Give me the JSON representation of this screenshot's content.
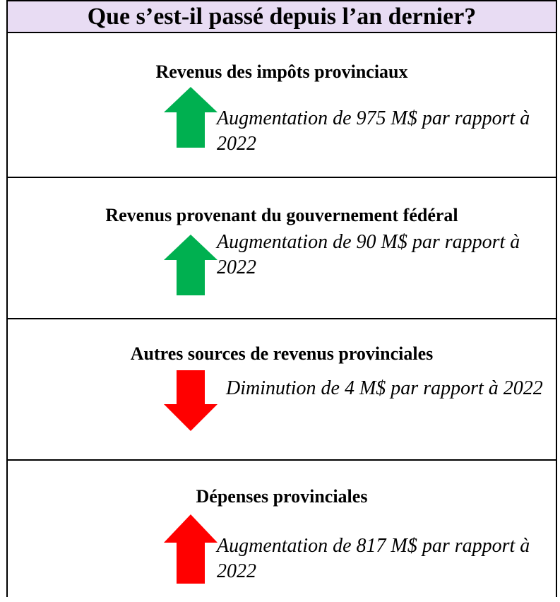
{
  "header": {
    "title": "Que s’est-il passé depuis l’an dernier?"
  },
  "sections": [
    {
      "heading": "Revenus des impôts provinciaux",
      "description": "Augmentation de 975 M$ par rapport à 2022"
    },
    {
      "heading": "Revenus provenant du gouvernement fédéral",
      "description": "Augmentation de 90 M$ par rapport à 2022"
    },
    {
      "heading": "Autres sources de revenus provinciales",
      "description": "Diminution de 4 M$ par rapport à 2022"
    },
    {
      "heading": "Dépenses provinciales",
      "description": "Augmentation de 817 M$ par rapport à 2022"
    }
  ]
}
